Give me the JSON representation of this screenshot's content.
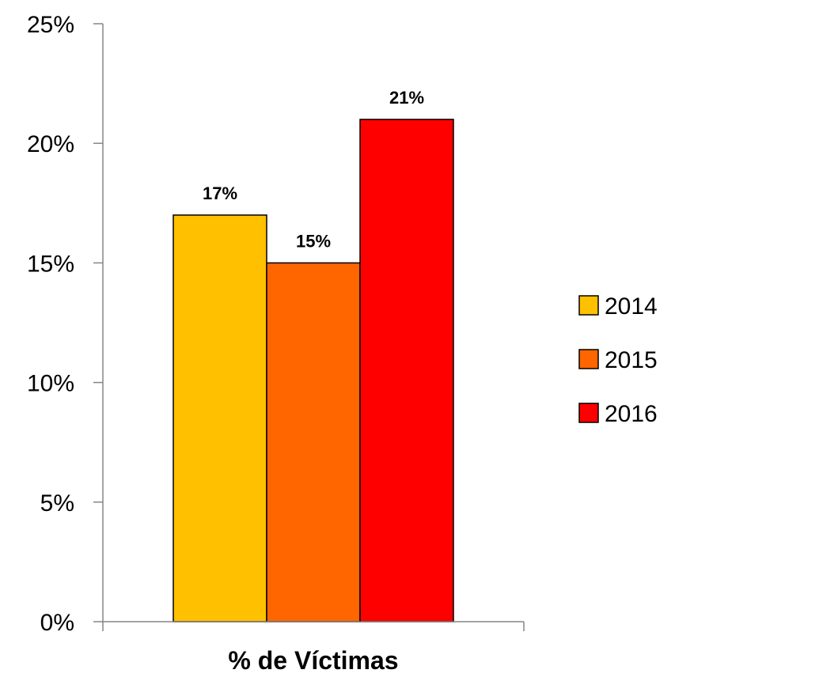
{
  "chart_data": {
    "type": "bar",
    "categories": [
      "% de Víctimas"
    ],
    "series": [
      {
        "name": "2014",
        "values": [
          17
        ],
        "label": "17%",
        "color": "#FFC000"
      },
      {
        "name": "2015",
        "values": [
          15
        ],
        "label": "15%",
        "color": "#FF6600"
      },
      {
        "name": "2016",
        "values": [
          21
        ],
        "label": "21%",
        "color": "#FF0000"
      }
    ],
    "ylim": [
      0,
      25
    ],
    "y_ticks": [
      {
        "value": 0,
        "label": "0%"
      },
      {
        "value": 5,
        "label": "5%"
      },
      {
        "value": 10,
        "label": "10%"
      },
      {
        "value": 15,
        "label": "15%"
      },
      {
        "value": 20,
        "label": "20%"
      },
      {
        "value": 25,
        "label": "25%"
      }
    ],
    "grid": false,
    "legend_position": "right"
  }
}
